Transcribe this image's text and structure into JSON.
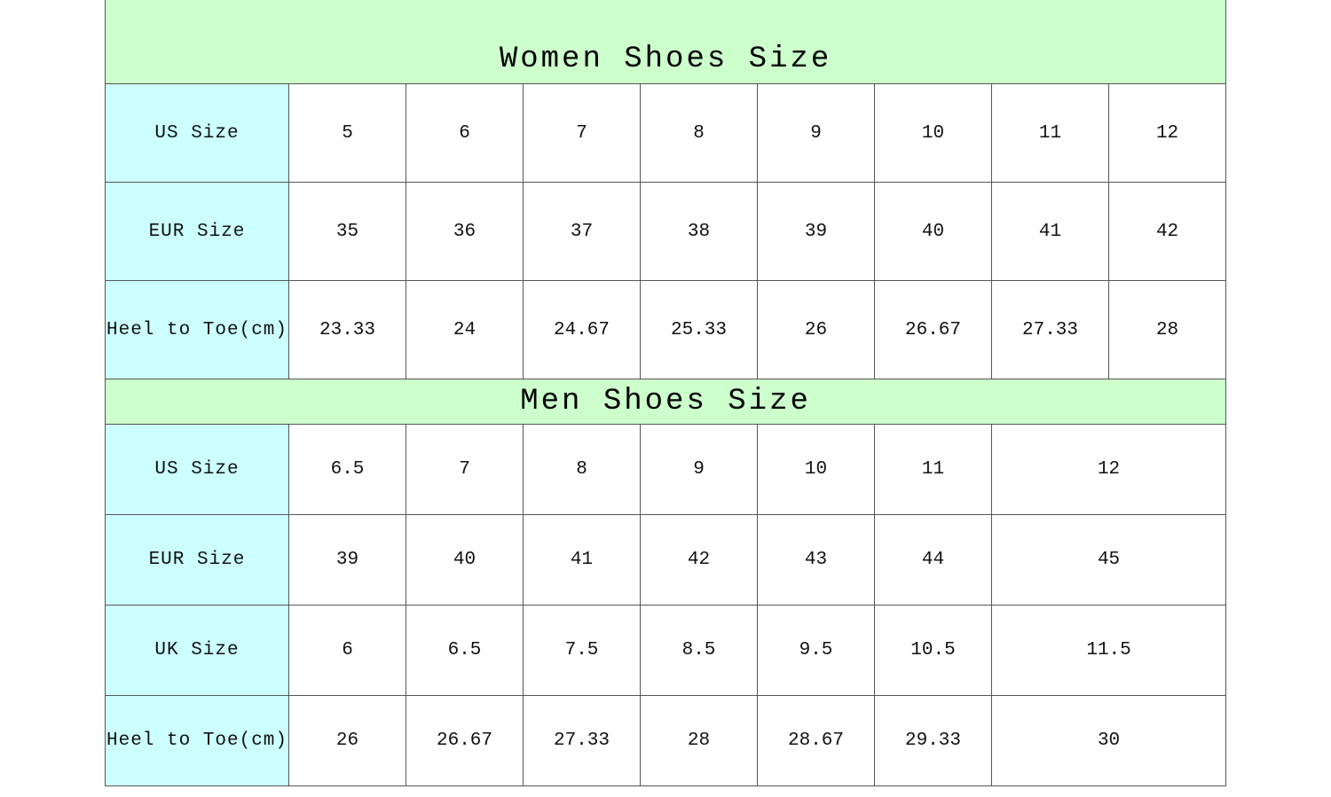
{
  "colors": {
    "title_bg": "#ccffcc",
    "label_bg": "#ccffff"
  },
  "women": {
    "title": "Women Shoes Size",
    "rows": [
      {
        "label": "US Size",
        "values": [
          "5",
          "6",
          "7",
          "8",
          "9",
          "10",
          "11",
          "12"
        ]
      },
      {
        "label": "EUR Size",
        "values": [
          "35",
          "36",
          "37",
          "38",
          "39",
          "40",
          "41",
          "42"
        ]
      },
      {
        "label": "Heel to Toe(cm)",
        "values": [
          "23.33",
          "24",
          "24.67",
          "25.33",
          "26",
          "26.67",
          "27.33",
          "28"
        ]
      }
    ]
  },
  "men": {
    "title": "Men Shoes Size",
    "rows": [
      {
        "label": "US Size",
        "values": [
          "6.5",
          "7",
          "8",
          "9",
          "10",
          "11",
          "12"
        ]
      },
      {
        "label": "EUR Size",
        "values": [
          "39",
          "40",
          "41",
          "42",
          "43",
          "44",
          "45"
        ]
      },
      {
        "label": "UK Size",
        "values": [
          "6",
          "6.5",
          "7.5",
          "8.5",
          "9.5",
          "10.5",
          "11.5"
        ]
      },
      {
        "label": "Heel to Toe(cm)",
        "values": [
          "26",
          "26.67",
          "27.33",
          "28",
          "28.67",
          "29.33",
          "30"
        ]
      }
    ]
  }
}
